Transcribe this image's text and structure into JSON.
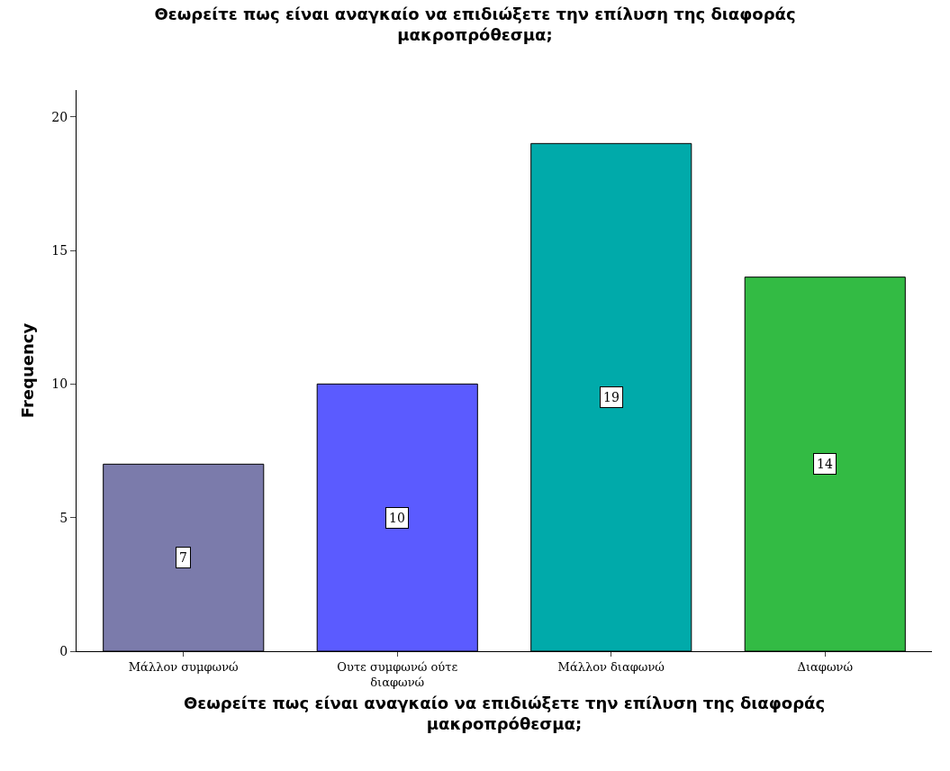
{
  "chart_data": {
    "type": "bar",
    "title": "Θεωρείτε πως είναι αναγκαίο να επιδιώξετε την επίλυση της διαφοράς μακροπρόθεσμα;",
    "xlabel": "Θεωρείτε πως είναι αναγκαίο να επιδιώξετε την επίλυση της διαφοράς μακροπρόθεσμα;",
    "ylabel": "Frequency",
    "categories": [
      "Μάλλον συμφωνώ",
      "Ουτε συμφωνώ ούτε διαφωνώ",
      "Μάλλον διαφωνώ",
      "Διαφωνώ"
    ],
    "values": [
      7,
      10,
      19,
      14
    ],
    "colors": [
      "#7b7bab",
      "#5b5bff",
      "#00aaaa",
      "#33bb44"
    ],
    "ylim": [
      0,
      21
    ],
    "yticks": [
      0,
      5,
      10,
      15,
      20
    ],
    "data_labels": true
  }
}
